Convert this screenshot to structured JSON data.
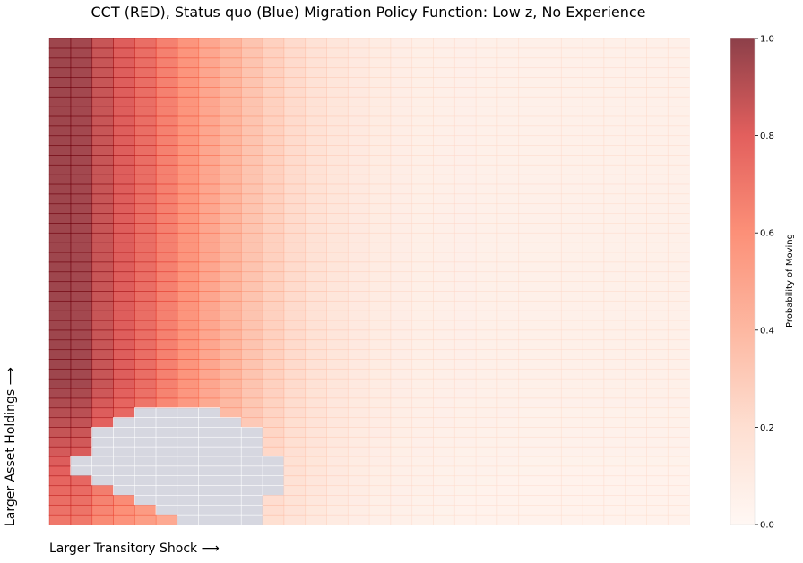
{
  "chart_data": {
    "type": "heatmap",
    "title": "CCT (RED), Status quo (Blue) Migration Policy Function: Low z, No Experience",
    "xlabel": "Larger Transitory Shock ⟶",
    "ylabel": "Larger Asset Holdings ⟶",
    "colorbar": {
      "label": "Probability of Moving",
      "range": [
        0,
        1
      ],
      "ticks": [
        "0.0",
        "0.2",
        "0.4",
        "0.6",
        "0.8",
        "1.0"
      ],
      "colormap": "Reds"
    },
    "grid": {
      "columns": 30,
      "rows": 50
    },
    "status_quo_color": "#c8c9d6",
    "cct_color": "#d62728"
  }
}
